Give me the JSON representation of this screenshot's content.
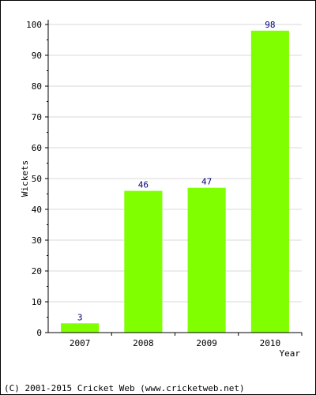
{
  "chart_data": {
    "type": "bar",
    "categories": [
      "2007",
      "2008",
      "2009",
      "2010"
    ],
    "values": [
      3,
      46,
      47,
      98
    ],
    "data_labels": [
      "3",
      "46",
      "47",
      "98"
    ],
    "xlabel": "Year",
    "ylabel": "Wickets",
    "ylim": [
      0,
      100
    ],
    "yticks": [
      "0",
      "10",
      "20",
      "30",
      "40",
      "50",
      "60",
      "70",
      "80",
      "90",
      "100"
    ],
    "grid": true,
    "legend": "none"
  },
  "footer": {
    "copyright": "(C) 2001-2015 Cricket Web (www.cricketweb.net)"
  },
  "colors": {
    "bar": "#80ff00",
    "data_label": "#000080",
    "grid": "#d9d9d9",
    "axis": "#000000"
  }
}
